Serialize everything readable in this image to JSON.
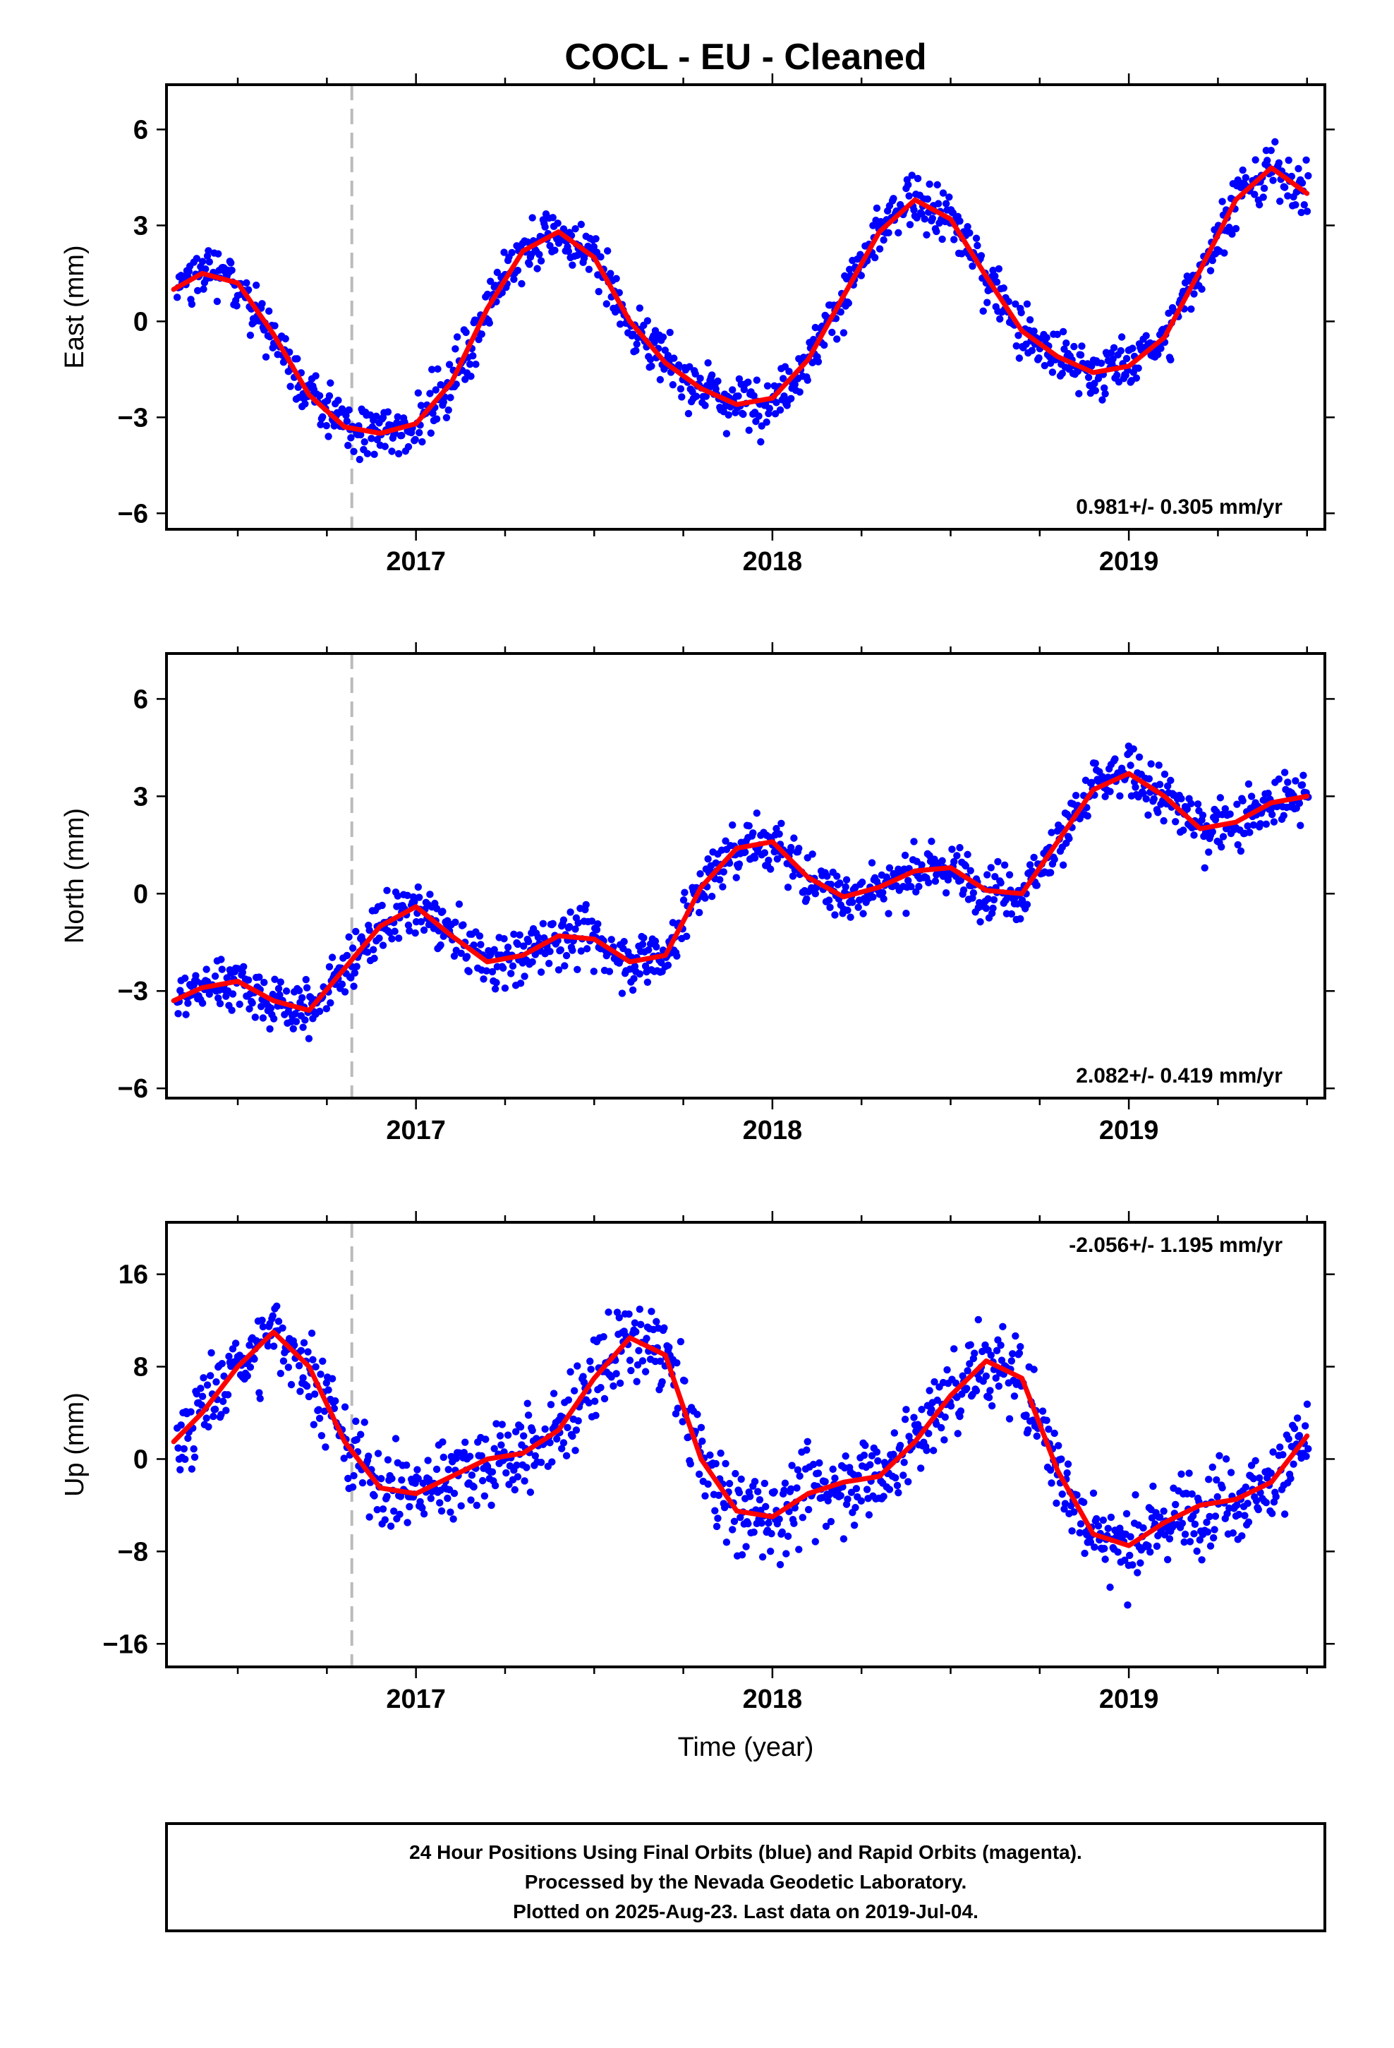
{
  "chart_data": {
    "type": "scatter",
    "title": "COCL  - EU - Cleaned",
    "xlabel": "Time (year)",
    "footer": [
      "24 Hour Positions Using Final Orbits (blue) and Rapid Orbits (magenta).",
      "Processed by the Nevada Geodetic Laboratory.",
      "Plotted on 2025-Aug-23. Last data on 2019-Jul-04."
    ],
    "xlim": [
      2016.3,
      2019.55
    ],
    "x_ticks": [
      "2017",
      "2018",
      "2019"
    ],
    "equipment_change": 2016.82,
    "colors": {
      "points": "#0000ff",
      "fit": "#ff0000",
      "dashed": "#bbbbbb"
    },
    "panels": [
      {
        "name": "east",
        "ylabel": "East (mm)",
        "ylim": [
          -6.5,
          7.4
        ],
        "y_ticks": [
          -6,
          -3,
          0,
          3,
          6
        ],
        "y_tick_labels": [
          "−6",
          "−3",
          "0",
          "3",
          "6"
        ],
        "rate": "0.981+/- 0.305 mm/yr",
        "rate_position": "bottom-right",
        "trend_mm_per_yr": 0.981,
        "seasonal": {
          "offset": -0.1,
          "annual_amp": 3.6,
          "annual_peak": 2016.41,
          "semi_amp": 0.0,
          "semi_peak": 2016.4
        },
        "noise": 0.8,
        "fit_x": [
          2016.32,
          2016.4,
          2016.5,
          2016.6,
          2016.7,
          2016.8,
          2016.9,
          2017.0,
          2017.1,
          2017.2,
          2017.3,
          2017.4,
          2017.5,
          2017.6,
          2017.7,
          2017.8,
          2017.9,
          2018.0,
          2018.1,
          2018.2,
          2018.3,
          2018.4,
          2018.5,
          2018.6,
          2018.7,
          2018.8,
          2018.9,
          2019.0,
          2019.1,
          2019.2,
          2019.3,
          2019.4,
          2019.5
        ],
        "fit_y": [
          1.0,
          1.5,
          1.2,
          -0.4,
          -2.3,
          -3.3,
          -3.5,
          -3.2,
          -1.9,
          0.4,
          2.2,
          2.8,
          2.0,
          0.0,
          -1.3,
          -2.1,
          -2.6,
          -2.4,
          -1.2,
          0.8,
          2.8,
          3.8,
          3.2,
          1.4,
          -0.3,
          -1.1,
          -1.6,
          -1.4,
          -0.5,
          1.6,
          3.8,
          4.8,
          4.0
        ]
      },
      {
        "name": "north",
        "ylabel": "North (mm)",
        "ylim": [
          -6.3,
          7.4
        ],
        "y_ticks": [
          -6,
          -3,
          0,
          3,
          6
        ],
        "y_tick_labels": [
          "−6",
          "−3",
          "0",
          "3",
          "6"
        ],
        "rate": "2.082+/- 0.419 mm/yr",
        "rate_position": "bottom-right",
        "trend_mm_per_yr": 2.082,
        "seasonal": {
          "offset": -1.6,
          "annual_amp": 1.0,
          "annual_peak": 2016.0,
          "semi_amp": 0.5,
          "semi_peak": 2016.0
        },
        "noise": 0.8,
        "fit_x": [
          2016.32,
          2016.4,
          2016.5,
          2016.6,
          2016.7,
          2016.8,
          2016.9,
          2017.0,
          2017.1,
          2017.2,
          2017.3,
          2017.4,
          2017.5,
          2017.6,
          2017.7,
          2017.8,
          2017.9,
          2018.0,
          2018.1,
          2018.2,
          2018.3,
          2018.4,
          2018.5,
          2018.6,
          2018.7,
          2018.8,
          2018.9,
          2019.0,
          2019.1,
          2019.2,
          2019.3,
          2019.4,
          2019.5
        ],
        "fit_y": [
          -3.3,
          -2.9,
          -2.7,
          -3.3,
          -3.6,
          -2.3,
          -1.0,
          -0.4,
          -1.3,
          -2.1,
          -1.9,
          -1.3,
          -1.4,
          -2.1,
          -1.9,
          0.2,
          1.4,
          1.6,
          0.5,
          -0.1,
          0.2,
          0.7,
          0.8,
          0.1,
          0.0,
          1.6,
          3.2,
          3.7,
          3.0,
          2.0,
          2.2,
          2.8,
          3.0
        ]
      },
      {
        "name": "up",
        "ylabel": "Up (mm)",
        "ylim": [
          -18,
          20.5
        ],
        "y_ticks": [
          -16,
          -8,
          0,
          8,
          16
        ],
        "y_tick_labels": [
          "−16",
          "−8",
          "0",
          "8",
          "16"
        ],
        "rate": "-2.056+/- 1.195 mm/yr",
        "rate_position": "top-right",
        "trend_mm_per_yr": -2.056,
        "seasonal": {
          "offset": 0.5,
          "annual_amp": 7.2,
          "annual_peak": 2016.63,
          "semi_amp": 2.5,
          "semi_peak": 2016.6
        },
        "noise": 3.5,
        "fit_x": [
          2016.32,
          2016.4,
          2016.5,
          2016.6,
          2016.7,
          2016.8,
          2016.9,
          2017.0,
          2017.1,
          2017.2,
          2017.3,
          2017.4,
          2017.5,
          2017.6,
          2017.7,
          2017.8,
          2017.9,
          2018.0,
          2018.1,
          2018.2,
          2018.3,
          2018.4,
          2018.5,
          2018.6,
          2018.7,
          2018.8,
          2018.9,
          2019.0,
          2019.1,
          2019.2,
          2019.3,
          2019.4,
          2019.5
        ],
        "fit_y": [
          1.5,
          4.0,
          8.0,
          11.0,
          8.0,
          1.5,
          -2.5,
          -3.0,
          -1.5,
          0.0,
          0.5,
          2.5,
          7.0,
          10.5,
          9.0,
          0.0,
          -4.5,
          -5.0,
          -3.0,
          -2.0,
          -1.5,
          1.5,
          5.5,
          8.5,
          7.0,
          -1.0,
          -6.5,
          -7.5,
          -5.5,
          -4.0,
          -3.5,
          -2.0,
          2.0
        ]
      }
    ]
  }
}
